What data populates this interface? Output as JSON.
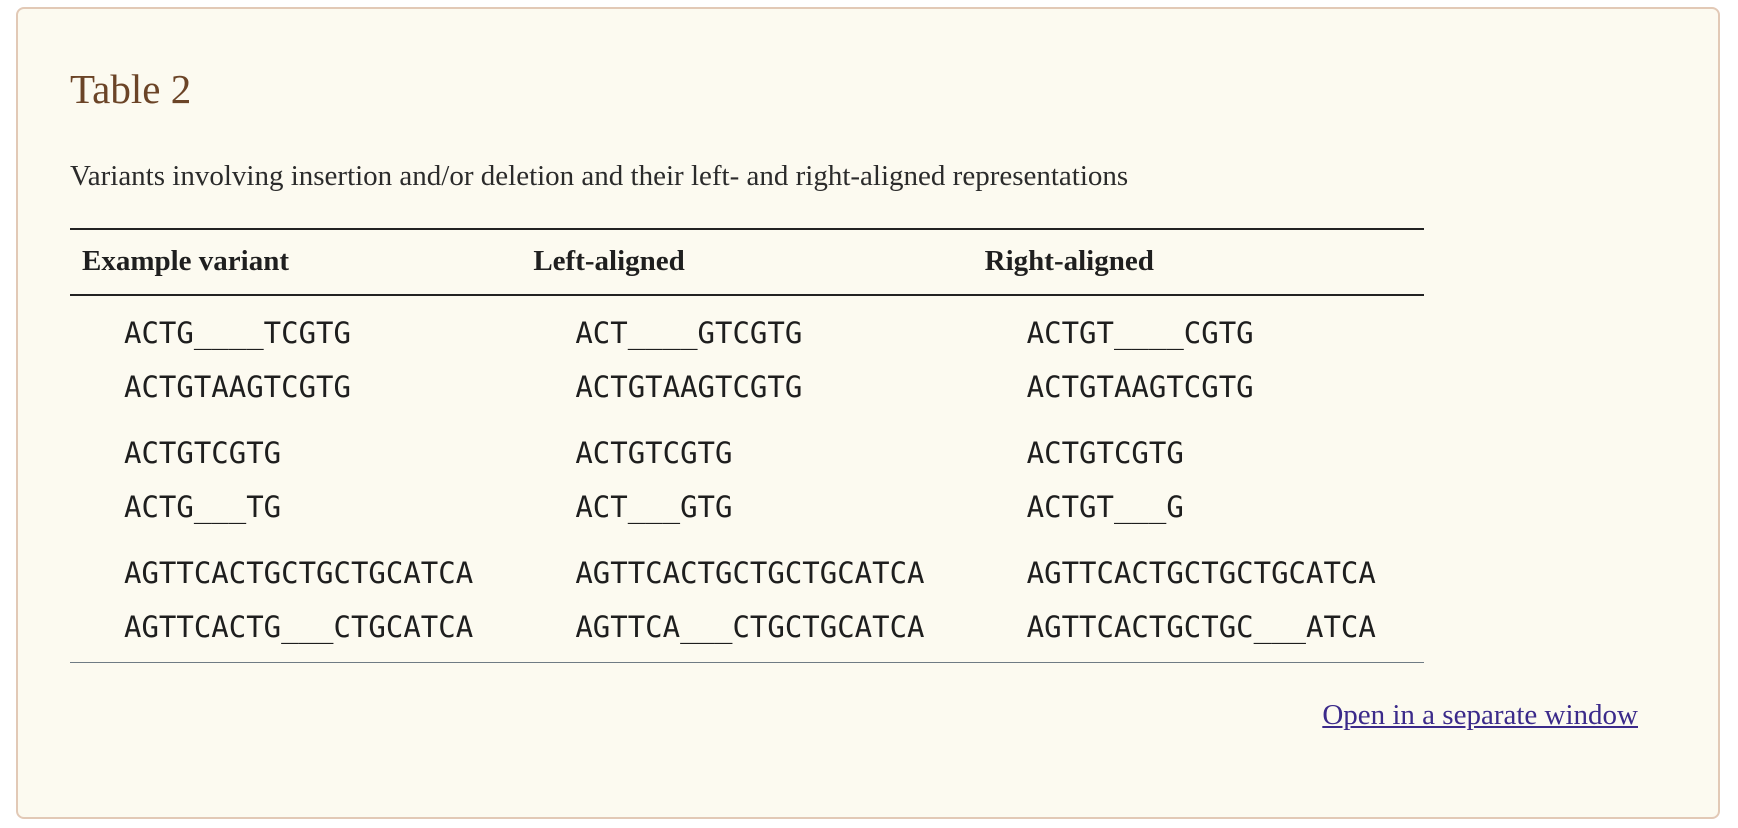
{
  "table": {
    "title": "Table 2",
    "caption": "Variants involving insertion and/or deletion and their left- and right-aligned representations",
    "headers": [
      "Example variant",
      "Left-aligned",
      "Right-aligned"
    ],
    "rows": [
      [
        [
          "ACTG____TCGTG",
          "ACTGTAAGTCGTG"
        ],
        [
          "ACT____GTCGTG",
          "ACTGTAAGTCGTG"
        ],
        [
          "ACTGT____CGTG",
          "ACTGTAAGTCGTG"
        ]
      ],
      [
        [
          "ACTGTCGTG",
          "ACTG___TG"
        ],
        [
          "ACTGTCGTG",
          "ACT___GTG"
        ],
        [
          "ACTGTCGTG",
          "ACTGT___G"
        ]
      ],
      [
        [
          "AGTTCACTGCTGCTGCATCA",
          "AGTTCACTG___CTGCATCA"
        ],
        [
          "AGTTCACTGCTGCTGCATCA",
          "AGTTCA___CTGCTGCATCA"
        ],
        [
          "AGTTCACTGCTGCTGCATCA",
          "AGTTCACTGCTGC___ATCA"
        ]
      ]
    ]
  },
  "links": {
    "open_window": "Open in a separate window"
  }
}
